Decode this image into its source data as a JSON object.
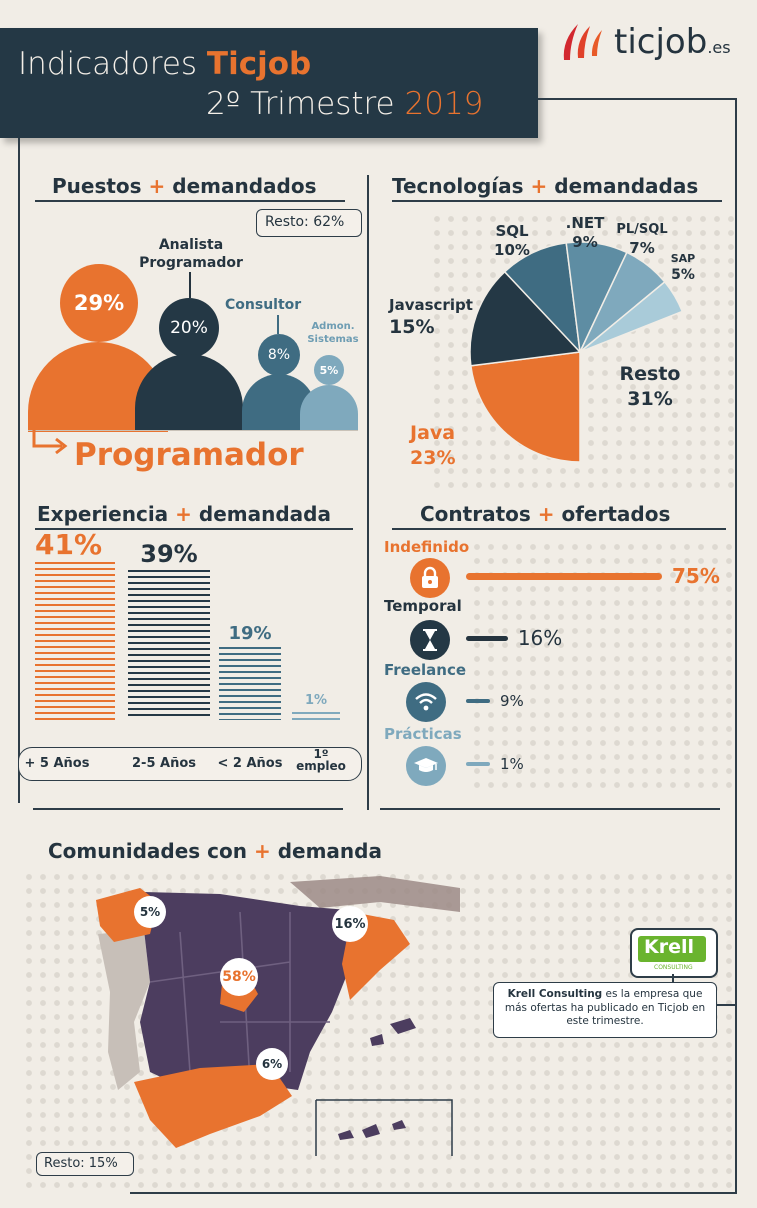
{
  "brand": {
    "name": "ticjob",
    "tld": ".es"
  },
  "header": {
    "line1_prefix": "Indicadores",
    "line1_brand": "Ticjob",
    "line2_prefix": "2º Trimestre",
    "line2_year": "2019"
  },
  "colors": {
    "orange": "#e8732f",
    "navy": "#243845",
    "teal": "#3f6c82",
    "light_teal": "#7fa9bd",
    "pale": "#a9cbd9",
    "bg": "#f1ede6"
  },
  "sections": {
    "puestos": {
      "a": "Puestos",
      "b": "demandados"
    },
    "tecnologias": {
      "a": "Tecnologías",
      "b": "demandadas"
    },
    "experiencia": {
      "a": "Experiencia",
      "b": "demandada"
    },
    "contratos": {
      "a": "Contratos",
      "b": "ofertados"
    },
    "comunidades": {
      "a": "Comunidades con",
      "b": "demanda"
    }
  },
  "puestos": {
    "resto": "Resto: 62%",
    "highlight": "Programador",
    "people": [
      {
        "label": "",
        "pct": "29%"
      },
      {
        "label": "Analista Programador",
        "label1": "Analista",
        "label2": "Programador",
        "pct": "20%"
      },
      {
        "label": "Consultor",
        "pct": "8%"
      },
      {
        "label": "Admon. Sistemas",
        "label1": "Admon.",
        "label2": "Sistemas",
        "pct": "5%"
      }
    ]
  },
  "tecnologias_labels": {
    "sql": {
      "name": "SQL",
      "pct": "10%"
    },
    "net": {
      "name": ".NET",
      "pct": "9%"
    },
    "plsql": {
      "name": "PL/SQL",
      "pct": "7%"
    },
    "sap": {
      "name": "SAP",
      "pct": "5%"
    },
    "javascript": {
      "name": "Javascript",
      "pct": "15%"
    },
    "resto": {
      "name": "Resto",
      "pct": "31%"
    },
    "java": {
      "name": "Java",
      "pct": "23%"
    }
  },
  "experiencia_labels": {
    "pcts": [
      "41%",
      "39%",
      "19%",
      "1%"
    ],
    "cats": [
      "+ 5 Años",
      "2-5 Años",
      "< 2 Años",
      "1º empleo"
    ]
  },
  "contratos_labels": [
    {
      "name": "Indefinido",
      "pct": "75%"
    },
    {
      "name": "Temporal",
      "pct": "16%"
    },
    {
      "name": "Freelance",
      "pct": "9%"
    },
    {
      "name": "Prácticas",
      "pct": "1%"
    }
  ],
  "comunidades": {
    "labels": [
      "5%",
      "16%",
      "58%",
      "6%"
    ],
    "resto": "Resto: 15%",
    "krell_logo": "Krell",
    "krell_sub": "CONSULTING",
    "krell_bold": "Krell Consulting",
    "krell_text": "es la empresa que más ofertas ha publicado en Ticjob en este trimestre."
  },
  "chart_data": [
    {
      "type": "bar",
      "title": "Puestos + demandados",
      "categories": [
        "Programador",
        "Analista Programador",
        "Consultor",
        "Admon. Sistemas",
        "Resto"
      ],
      "values": [
        29,
        20,
        8,
        5,
        62
      ]
    },
    {
      "type": "pie",
      "title": "Tecnologías + demandadas",
      "categories": [
        "Java",
        "Javascript",
        "SQL",
        ".NET",
        "PL/SQL",
        "SAP",
        "Resto"
      ],
      "values": [
        23,
        15,
        10,
        9,
        7,
        5,
        31
      ]
    },
    {
      "type": "bar",
      "title": "Experiencia + demandada",
      "categories": [
        "+ 5 Años",
        "2-5 Años",
        "< 2 Años",
        "1º empleo"
      ],
      "values": [
        41,
        39,
        19,
        1
      ],
      "ylim": [
        0,
        41
      ]
    },
    {
      "type": "bar",
      "title": "Contratos + ofertados",
      "categories": [
        "Indefinido",
        "Temporal",
        "Freelance",
        "Prácticas"
      ],
      "values": [
        75,
        16,
        9,
        1
      ]
    },
    {
      "type": "table",
      "title": "Comunidades con + demanda",
      "categories": [
        "Galicia",
        "Cataluña",
        "Madrid",
        "Andalucía",
        "Resto"
      ],
      "values": [
        5,
        16,
        58,
        6,
        15
      ]
    }
  ]
}
